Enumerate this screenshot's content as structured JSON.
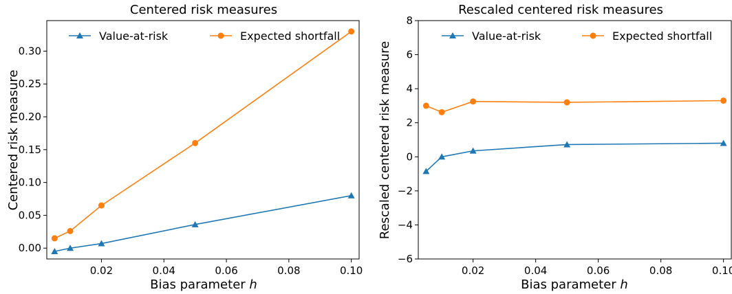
{
  "chart_data": [
    {
      "type": "line",
      "title": "Centered risk measures",
      "xlabel": "Bias parameter",
      "xlabel_var": "h",
      "ylabel": "Centered risk measure",
      "xlim": [
        0.0025,
        0.1025
      ],
      "ylim": [
        -0.0165,
        0.3465
      ],
      "xticks": [
        0.02,
        0.04,
        0.06,
        0.08,
        0.1
      ],
      "xtick_labels": [
        "0.02",
        "0.04",
        "0.06",
        "0.08",
        "0.10"
      ],
      "yticks": [
        0.0,
        0.05,
        0.1,
        0.15,
        0.2,
        0.25,
        0.3
      ],
      "ytick_labels": [
        "0.00",
        "0.05",
        "0.10",
        "0.15",
        "0.20",
        "0.25",
        "0.30"
      ],
      "grid": false,
      "legend_position": "top",
      "x": [
        0.005,
        0.01,
        0.02,
        0.05,
        0.1
      ],
      "series": [
        {
          "name": "Value-at-risk",
          "color": "#1f77b4",
          "marker": "triangle",
          "values": [
            -0.005,
            0.0,
            0.007,
            0.036,
            0.08
          ]
        },
        {
          "name": "Expected shortfall",
          "color": "#ff7f0e",
          "marker": "circle",
          "values": [
            0.015,
            0.026,
            0.065,
            0.16,
            0.33
          ]
        }
      ]
    },
    {
      "type": "line",
      "title": "Rescaled centered risk measures",
      "xlabel": "Bias parameter",
      "xlabel_var": "h",
      "ylabel": "Rescaled centered risk measure",
      "xlim": [
        0.0025,
        0.1025
      ],
      "ylim": [
        -6,
        8
      ],
      "xticks": [
        0.02,
        0.04,
        0.06,
        0.08,
        0.1
      ],
      "xtick_labels": [
        "0.02",
        "0.04",
        "0.06",
        "0.08",
        "0.10"
      ],
      "yticks": [
        -6,
        -4,
        -2,
        0,
        2,
        4,
        6,
        8
      ],
      "ytick_labels": [
        "−6",
        "−4",
        "−2",
        "0",
        "2",
        "4",
        "6",
        "8"
      ],
      "grid": false,
      "legend_position": "top",
      "x": [
        0.005,
        0.01,
        0.02,
        0.05,
        0.1
      ],
      "series": [
        {
          "name": "Value-at-risk",
          "color": "#1f77b4",
          "marker": "triangle",
          "values": [
            -0.85,
            0.0,
            0.35,
            0.72,
            0.8
          ]
        },
        {
          "name": "Expected shortfall",
          "color": "#ff7f0e",
          "marker": "circle",
          "values": [
            3.0,
            2.62,
            3.25,
            3.2,
            3.3
          ]
        }
      ]
    }
  ]
}
